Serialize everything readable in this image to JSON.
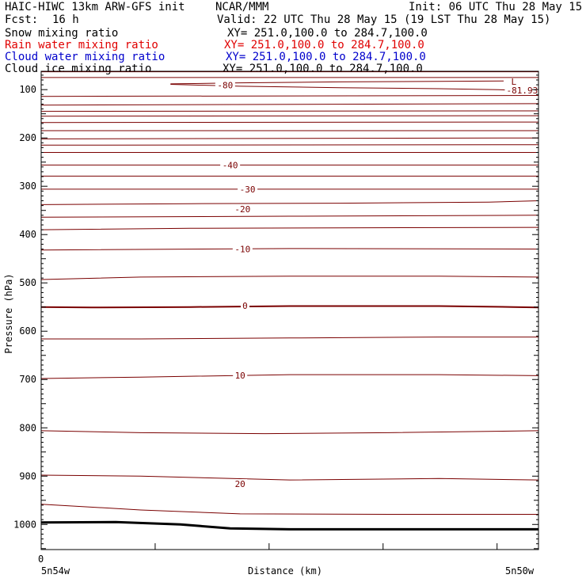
{
  "header": {
    "model": "HAIC-HIWC 13km ARW-GFS init",
    "org": "NCAR/MMM",
    "init": "Init: 06 UTC Thu 28 May 15",
    "fcst_label": "Fcst:",
    "fcst_value": "16 h",
    "valid": "Valid: 22 UTC Thu 28 May 15 (19 LST Thu 28 May 15)"
  },
  "fields": [
    {
      "name": "Snow mixing ratio",
      "xy": "XY= 251.0,100.0 to 284.7,100.0",
      "color": "#000000"
    },
    {
      "name": "Rain water mixing ratio",
      "xy": "XY= 251.0,100.0 to 284.7,100.0",
      "color": "#e00000"
    },
    {
      "name": "Cloud water mixing ratio",
      "xy": "XY= 251.0,100.0 to 284.7,100.0",
      "color": "#0000cc"
    },
    {
      "name": "Cloud ice mixing ratio",
      "xy": "XY= 251.0,100.0 to 284.7,100.0",
      "color": "#000000"
    }
  ],
  "colors": {
    "contour": "#7a0000",
    "surface": "#000000",
    "axis": "#000000"
  },
  "chart_data": {
    "type": "line",
    "xlabel": "Distance (km)",
    "ylabel": "Pressure (hPa)",
    "x_tick_labels": [
      "0"
    ],
    "x_end_labels": [
      "5n54w",
      "5n50w"
    ],
    "y_tick_values": [
      100,
      200,
      300,
      400,
      500,
      600,
      700,
      800,
      900,
      1000
    ],
    "ylim": [
      62,
      1052
    ],
    "xlim": [
      0,
      1
    ],
    "x_minor_ticks": [
      0.2292,
      0.4583,
      0.6875,
      0.9167
    ],
    "contour_labels": [
      {
        "text": "-80",
        "x": 0.37,
        "p": 91
      },
      {
        "text": "-40",
        "x": 0.38,
        "p": 256
      },
      {
        "text": "-30",
        "x": 0.415,
        "p": 306
      },
      {
        "text": "-20",
        "x": 0.405,
        "p": 347
      },
      {
        "text": "-10",
        "x": 0.405,
        "p": 430
      },
      {
        "text": "0",
        "x": 0.41,
        "p": 547
      },
      {
        "text": "10",
        "x": 0.4,
        "p": 691
      },
      {
        "text": "20",
        "x": 0.4,
        "p": 916
      }
    ],
    "extremum": {
      "label": "L",
      "value": "-81.93",
      "x": 0.945,
      "p_label": 83,
      "p_value": 101
    },
    "contours": [
      {
        "x": [
          0,
          1
        ],
        "p": [
          63,
          63
        ],
        "heavy": false
      },
      {
        "x": [
          0,
          1
        ],
        "p": [
          75,
          75
        ],
        "heavy": false
      },
      {
        "x": [
          0.26,
          0.4,
          0.6,
          0.8,
          0.93
        ],
        "p": [
          88,
          86,
          84,
          83,
          82
        ],
        "heavy": false
      },
      {
        "x": [
          0.26,
          0.4,
          0.6,
          0.8,
          0.92,
          0.94
        ],
        "p": [
          89,
          93,
          96,
          98,
          100,
          101
        ],
        "heavy": false
      },
      {
        "x": [
          0,
          1
        ],
        "p": [
          114,
          112
        ],
        "heavy": false
      },
      {
        "x": [
          0,
          1
        ],
        "p": [
          132,
          129
        ],
        "heavy": false
      },
      {
        "x": [
          0,
          1
        ],
        "p": [
          145,
          144
        ],
        "heavy": false
      },
      {
        "x": [
          0,
          1
        ],
        "p": [
          155,
          154
        ],
        "heavy": false
      },
      {
        "x": [
          0,
          1
        ],
        "p": [
          168,
          167
        ],
        "heavy": false
      },
      {
        "x": [
          0,
          1
        ],
        "p": [
          185,
          185
        ],
        "heavy": false
      },
      {
        "x": [
          0,
          1
        ],
        "p": [
          202,
          200
        ],
        "heavy": false
      },
      {
        "x": [
          0,
          1
        ],
        "p": [
          215,
          214
        ],
        "heavy": false
      },
      {
        "x": [
          0,
          1
        ],
        "p": [
          230,
          230
        ],
        "heavy": false
      },
      {
        "x": [
          0,
          1
        ],
        "p": [
          256,
          256
        ],
        "heavy": false
      },
      {
        "x": [
          0,
          1
        ],
        "p": [
          279,
          279
        ],
        "heavy": false
      },
      {
        "x": [
          0,
          1
        ],
        "p": [
          306,
          306
        ],
        "heavy": false
      },
      {
        "x": [
          0,
          0.3,
          0.6,
          0.9,
          1
        ],
        "p": [
          338,
          336,
          335,
          333,
          330
        ],
        "heavy": false
      },
      {
        "x": [
          0,
          0.5,
          1
        ],
        "p": [
          364,
          362,
          360
        ],
        "heavy": false
      },
      {
        "x": [
          0,
          0.3,
          0.6,
          1
        ],
        "p": [
          390,
          387,
          386,
          385
        ],
        "heavy": false
      },
      {
        "x": [
          0,
          0.5,
          1
        ],
        "p": [
          432,
          429,
          430
        ],
        "heavy": false
      },
      {
        "x": [
          0,
          0.2,
          0.5,
          0.8,
          1
        ],
        "p": [
          493,
          488,
          486,
          486,
          488
        ],
        "heavy": false
      },
      {
        "x": [
          0,
          0.1,
          0.3,
          0.5,
          0.8,
          0.95,
          1
        ],
        "p": [
          550,
          551,
          550,
          548,
          548,
          550,
          551
        ],
        "heavy": true
      },
      {
        "x": [
          0,
          0.2,
          0.5,
          0.8,
          1
        ],
        "p": [
          616,
          616,
          614,
          612,
          612
        ],
        "heavy": false
      },
      {
        "x": [
          0,
          0.2,
          0.5,
          0.8,
          1
        ],
        "p": [
          698,
          695,
          690,
          690,
          692
        ],
        "heavy": false
      },
      {
        "x": [
          0,
          0.2,
          0.45,
          0.7,
          1
        ],
        "p": [
          806,
          810,
          812,
          810,
          806
        ],
        "heavy": false
      },
      {
        "x": [
          0,
          0.2,
          0.5,
          0.8,
          1
        ],
        "p": [
          898,
          900,
          908,
          905,
          908
        ],
        "heavy": false
      },
      {
        "x": [
          0,
          0.2,
          0.4,
          0.7,
          1
        ],
        "p": [
          958,
          970,
          978,
          979,
          979
        ],
        "heavy": false
      }
    ],
    "surface": {
      "x": [
        0,
        0.15,
        0.28,
        0.38,
        0.5,
        0.7,
        1
      ],
      "p": [
        996,
        995,
        1000,
        1008,
        1010,
        1010,
        1010
      ]
    }
  }
}
